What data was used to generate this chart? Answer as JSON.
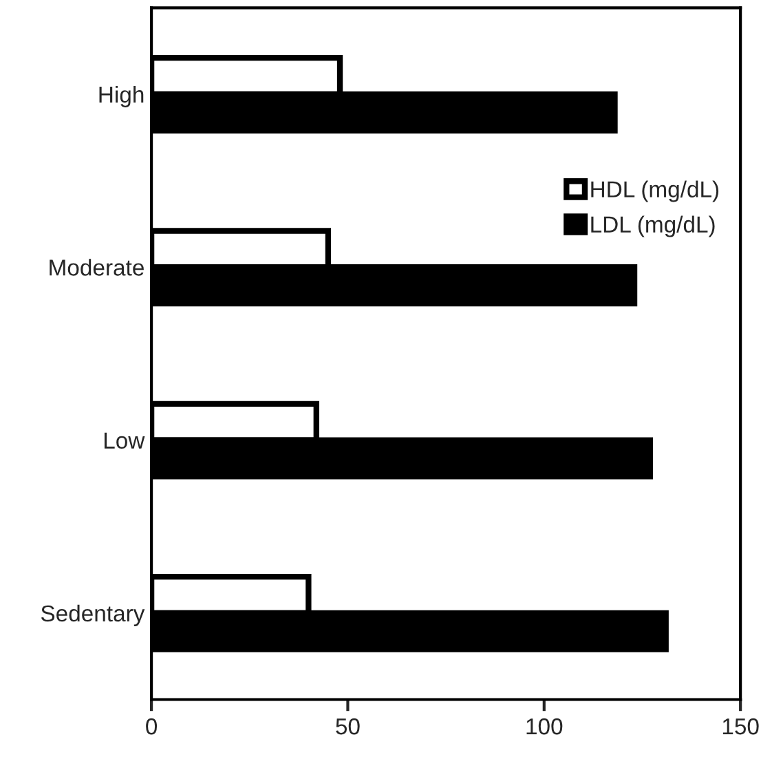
{
  "chart_data": {
    "type": "bar",
    "orientation": "horizontal",
    "categories": [
      "High",
      "Moderate",
      "Low",
      "Sedentary"
    ],
    "series": [
      {
        "name": "HDL (mg/dL)",
        "color": "#ffffff",
        "values": [
          48,
          45,
          42,
          40
        ]
      },
      {
        "name": "LDL (mg/dL)",
        "color": "#000000",
        "values": [
          118,
          123,
          127,
          131
        ]
      }
    ],
    "xlim": [
      0,
      150
    ],
    "xticks": [
      0,
      50,
      100,
      150
    ],
    "grid": false,
    "legend": "top right"
  }
}
